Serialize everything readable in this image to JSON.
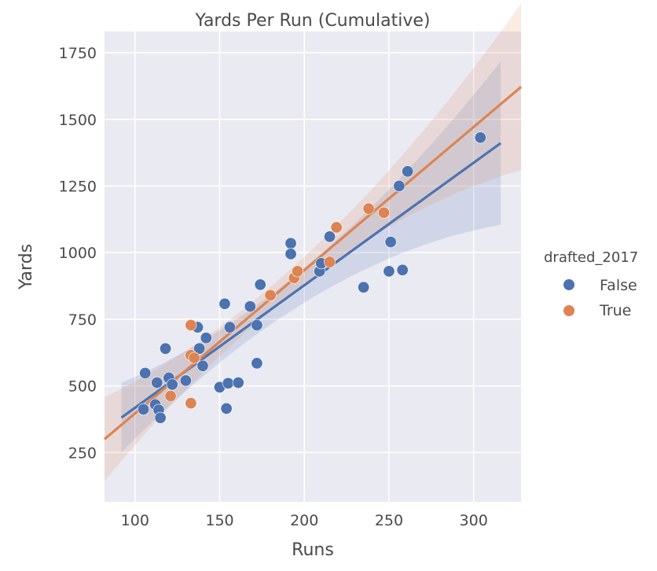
{
  "chart_data": {
    "type": "scatter",
    "title": "Yards Per Run (Cumulative)",
    "xlabel": "Runs",
    "ylabel": "Yards",
    "xlim": [
      82,
      328
    ],
    "ylim": [
      65,
      1830
    ],
    "xticks": [
      100,
      150,
      200,
      250,
      300
    ],
    "yticks": [
      250,
      500,
      750,
      1000,
      1250,
      1500,
      1750
    ],
    "grid": true,
    "background": "#eaeaf2",
    "legend": {
      "title": "drafted_2017",
      "position": "right"
    },
    "series": [
      {
        "name": "False",
        "color": "#4c72b0",
        "points": [
          [
            106,
            548
          ],
          [
            105,
            412
          ],
          [
            112,
            430
          ],
          [
            113,
            512
          ],
          [
            114,
            410
          ],
          [
            115,
            380
          ],
          [
            118,
            640
          ],
          [
            120,
            530
          ],
          [
            122,
            505
          ],
          [
            130,
            520
          ],
          [
            137,
            720
          ],
          [
            138,
            640
          ],
          [
            140,
            575
          ],
          [
            142,
            680
          ],
          [
            150,
            495
          ],
          [
            153,
            808
          ],
          [
            154,
            415
          ],
          [
            155,
            510
          ],
          [
            156,
            720
          ],
          [
            161,
            512
          ],
          [
            168,
            798
          ],
          [
            172,
            728
          ],
          [
            172,
            585
          ],
          [
            174,
            880
          ],
          [
            192,
            1035
          ],
          [
            192,
            995
          ],
          [
            209,
            930
          ],
          [
            210,
            960
          ],
          [
            215,
            1060
          ],
          [
            235,
            870
          ],
          [
            250,
            930
          ],
          [
            251,
            1040
          ],
          [
            256,
            1250
          ],
          [
            258,
            935
          ],
          [
            261,
            1305
          ],
          [
            304,
            1432
          ]
        ],
        "fit": {
          "x": [
            92,
            316
          ],
          "y": [
            381,
            1411
          ]
        }
      },
      {
        "name": "True",
        "color": "#dd8452",
        "points": [
          [
            121,
            462
          ],
          [
            133,
            728
          ],
          [
            133,
            435
          ],
          [
            133,
            615
          ],
          [
            135,
            605
          ],
          [
            180,
            840
          ],
          [
            194,
            905
          ],
          [
            196,
            930
          ],
          [
            215,
            965
          ],
          [
            219,
            1095
          ],
          [
            238,
            1165
          ],
          [
            247,
            1150
          ]
        ],
        "fit": {
          "x": [
            82,
            328
          ],
          "y": [
            300,
            1622
          ]
        }
      }
    ]
  }
}
